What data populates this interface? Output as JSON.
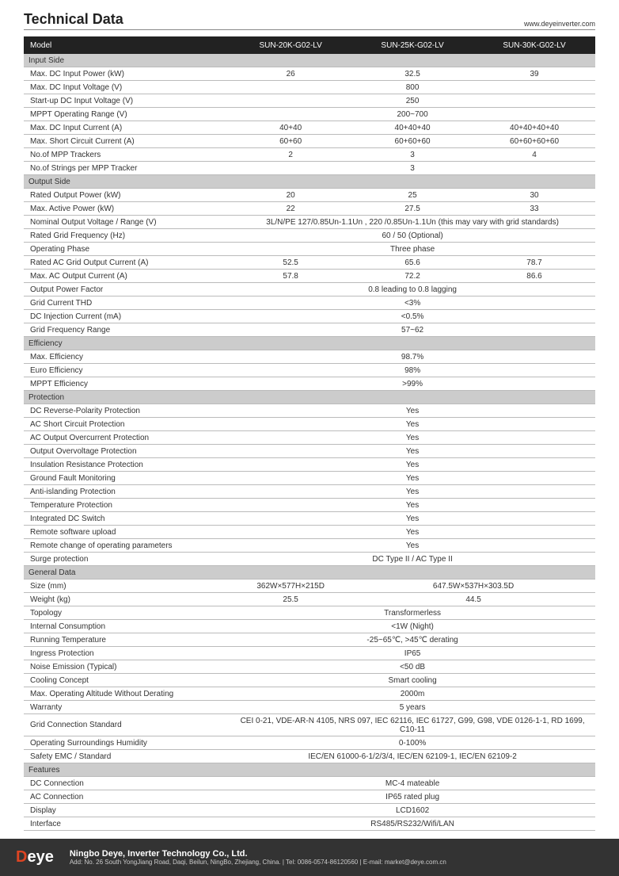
{
  "header": {
    "title": "Technical Data",
    "url": "www.deyeinverter.com"
  },
  "cols": {
    "label": "Model",
    "c1": "SUN-20K-G02-LV",
    "c2": "SUN-25K-G02-LV",
    "c3": "SUN-30K-G02-LV"
  },
  "sections": {
    "input": "Input Side",
    "output": "Output Side",
    "eff": "Efficiency",
    "prot": "Protection",
    "gen": "General Data",
    "feat": "Features"
  },
  "rows": {
    "i1": {
      "l": "Max. DC Input Power (kW)",
      "c1": "26",
      "c2": "32.5",
      "c3": "39"
    },
    "i2": {
      "l": "Max. DC Input Voltage (V)",
      "m": "800"
    },
    "i3": {
      "l": "Start-up DC Input Voltage (V)",
      "m": "250"
    },
    "i4": {
      "l": "MPPT  Operating Range (V)",
      "m": "200~700"
    },
    "i5": {
      "l": "Max. DC Input Current (A)",
      "c1": "40+40",
      "c2": "40+40+40",
      "c3": "40+40+40+40"
    },
    "i6": {
      "l": "Max. Short Circuit Current (A)",
      "c1": "60+60",
      "c2": "60+60+60",
      "c3": "60+60+60+60"
    },
    "i7": {
      "l": "No.of MPP Trackers",
      "c1": "2",
      "c2": "3",
      "c3": "4"
    },
    "i8": {
      "l": "No.of Strings per MPP Tracker",
      "m": "3"
    },
    "o1": {
      "l": "Rated Output Power (kW)",
      "c1": "20",
      "c2": "25",
      "c3": "30"
    },
    "o2": {
      "l": "Max. Active Power (kW)",
      "c1": "22",
      "c2": "27.5",
      "c3": "33"
    },
    "o3": {
      "l": "Nominal Output Voltage / Range (V)",
      "m": "3L/N/PE  127/0.85Un-1.1Un ,   220 /0.85Un-1.1Un (this may vary with grid standards)"
    },
    "o4": {
      "l": "Rated Grid Frequency (Hz)",
      "m": "60 / 50 (Optional)"
    },
    "o5": {
      "l": "Operating Phase",
      "m": "Three phase"
    },
    "o6": {
      "l": "Rated AC Grid Output Current (A)",
      "c1": "52.5",
      "c2": "65.6",
      "c3": "78.7"
    },
    "o7": {
      "l": "Max. AC Output Current (A)",
      "c1": "57.8",
      "c2": "72.2",
      "c3": "86.6"
    },
    "o8": {
      "l": "Output Power Factor",
      "m": "0.8 leading to 0.8 lagging"
    },
    "o9": {
      "l": "Grid Current THD",
      "m": "<3%"
    },
    "o10": {
      "l": "DC Injection Current (mA)",
      "m": "<0.5%"
    },
    "o11": {
      "l": "Grid Frequency Range",
      "m": "57~62"
    },
    "e1": {
      "l": "Max. Efficiency",
      "m": "98.7%"
    },
    "e2": {
      "l": "Euro Efficiency",
      "m": "98%"
    },
    "e3": {
      "l": "MPPT Efficiency",
      "m": ">99%"
    },
    "p1": {
      "l": "DC Reverse-Polarity Protection",
      "m": "Yes"
    },
    "p2": {
      "l": "AC Short Circuit Protection",
      "m": "Yes"
    },
    "p3": {
      "l": "AC Output Overcurrent Protection",
      "m": "Yes"
    },
    "p4": {
      "l": "Output Overvoltage Protection",
      "m": "Yes"
    },
    "p5": {
      "l": "Insulation Resistance Protection",
      "m": "Yes"
    },
    "p6": {
      "l": "Ground Fault Monitoring",
      "m": "Yes"
    },
    "p7": {
      "l": "Anti-islanding Protection",
      "m": "Yes"
    },
    "p8": {
      "l": "Temperature Protection",
      "m": "Yes"
    },
    "p9": {
      "l": "Integrated DC Switch",
      "m": "Yes"
    },
    "p10": {
      "l": "Remote software upload",
      "m": "Yes"
    },
    "p11": {
      "l": "Remote change of operating parameters",
      "m": "Yes"
    },
    "p12": {
      "l": "Surge protection",
      "m": "DC Type II / AC Type II"
    },
    "g1": {
      "l": "Size (mm)",
      "c1": "362W×577H×215D",
      "c23": "647.5W×537H×303.5D"
    },
    "g2": {
      "l": "Weight (kg)",
      "c1": "25.5",
      "c23": "44.5"
    },
    "g3": {
      "l": "Topology",
      "m": "Transformerless"
    },
    "g4": {
      "l": "Internal Consumption",
      "m": "<1W (Night)"
    },
    "g5": {
      "l": "Running Temperature",
      "m": "-25~65℃, >45℃ derating"
    },
    "g6": {
      "l": "Ingress Protection",
      "m": "IP65"
    },
    "g7": {
      "l": "Noise Emission (Typical)",
      "m": "<50 dB"
    },
    "g8": {
      "l": "Cooling Concept",
      "m": "Smart cooling"
    },
    "g9": {
      "l": "Max. Operating Altitude Without Derating",
      "m": "2000m"
    },
    "g10": {
      "l": "Warranty",
      "m": "5 years"
    },
    "g11": {
      "l": "Grid Connection Standard",
      "m": "CEI 0-21, VDE-AR-N 4105, NRS 097, IEC 62116, IEC 61727, G99, G98, VDE 0126-1-1, RD 1699, C10-11"
    },
    "g12": {
      "l": "Operating Surroundings Humidity",
      "m": "0-100%"
    },
    "g13": {
      "l": "Safety EMC / Standard",
      "m": "IEC/EN 61000-6-1/2/3/4, IEC/EN 62109-1, IEC/EN 62109-2"
    },
    "f1": {
      "l": "DC Connection",
      "m": "MC-4 mateable"
    },
    "f2": {
      "l": "AC Connection",
      "m": "IP65 rated plug"
    },
    "f3": {
      "l": "Display",
      "m": "LCD1602"
    },
    "f4": {
      "l": "Interface",
      "m": "RS485/RS232/Wifi/LAN"
    }
  },
  "footer": {
    "logo1": "D",
    "logo2": "eye",
    "company": "Ningbo Deye, Inverter Technology Co., Ltd.",
    "addr": "Add: No. 26 South YongJiang Road, Daqi, Beilun, NingBo, Zhejiang, China.   |   Tel: 0086-0574-86120560   |   E-mail: market@deye.com.cn"
  }
}
